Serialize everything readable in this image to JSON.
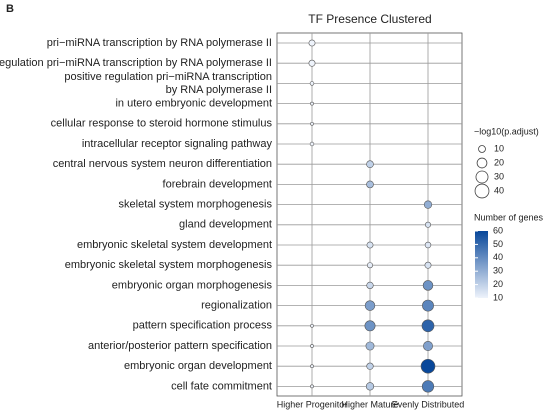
{
  "chart_data": {
    "type": "dot",
    "panel_label": "B",
    "title": "TF Presence Clustered",
    "categories": [
      "pri−miRNA transcription by RNA polymerase II",
      "regulation pri−miRNA transcription by RNA polymerase II",
      "positive regulation pri−miRNA transcription\nby RNA polymerase II",
      "in utero embryonic development",
      "cellular response to steroid hormone stimulus",
      "intracellular receptor signaling pathway",
      "central nervous system neuron differentiation",
      "forebrain development",
      "skeletal system morphogenesis",
      "gland development",
      "embryonic skeletal system development",
      "embryonic skeletal system morphogenesis",
      "embryonic organ morphogenesis",
      "regionalization",
      "pattern specification process",
      "anterior/posterior pattern specification",
      "embryonic organ development",
      "cell fate commitment"
    ],
    "x_categories": [
      "Higher Progenitor",
      "Higher Mature",
      "Evenly Distributed"
    ],
    "points": {
      "x": [
        "Higher Progenitor",
        "Higher Progenitor",
        "Higher Progenitor",
        "Higher Progenitor",
        "Higher Progenitor",
        "Higher Progenitor",
        "Higher Progenitor",
        "Higher Progenitor",
        "Higher Progenitor",
        "Higher Progenitor",
        "Higher Mature",
        "Higher Mature",
        "Higher Mature",
        "Higher Mature",
        "Higher Mature",
        "Higher Mature",
        "Higher Mature",
        "Higher Mature",
        "Higher Mature",
        "Higher Mature",
        "Evenly Distributed",
        "Evenly Distributed",
        "Evenly Distributed",
        "Evenly Distributed",
        "Evenly Distributed",
        "Evenly Distributed",
        "Evenly Distributed",
        "Evenly Distributed",
        "Evenly Distributed",
        "Evenly Distributed"
      ],
      "y": [
        "pri−miRNA transcription by RNA polymerase II",
        "regulation pri−miRNA transcription by RNA polymerase II",
        "positive regulation pri−miRNA transcription\nby RNA polymerase II",
        "in utero embryonic development",
        "cellular response to steroid hormone stimulus",
        "intracellular receptor signaling pathway",
        "pattern specification process",
        "anterior/posterior pattern specification",
        "embryonic organ development",
        "cell fate commitment",
        "central nervous system neuron differentiation",
        "forebrain development",
        "embryonic skeletal system development",
        "embryonic skeletal system morphogenesis",
        "embryonic organ morphogenesis",
        "regionalization",
        "pattern specification process",
        "anterior/posterior pattern specification",
        "embryonic organ development",
        "cell fate commitment",
        "skeletal system morphogenesis",
        "gland development",
        "embryonic skeletal system development",
        "embryonic skeletal system morphogenesis",
        "embryonic organ morphogenesis",
        "regionalization",
        "pattern specification process",
        "anterior/posterior pattern specification",
        "embryonic organ development",
        "cell fate commitment"
      ],
      "size": [
        8,
        8,
        3,
        2,
        2,
        3,
        2,
        2,
        2,
        2,
        10,
        10,
        8,
        6,
        9,
        20,
        22,
        14,
        9,
        12,
        12,
        6,
        7,
        8,
        20,
        26,
        30,
        18,
        40,
        28
      ],
      "genes": [
        10,
        10,
        10,
        10,
        10,
        10,
        10,
        10,
        10,
        10,
        20,
        25,
        15,
        12,
        18,
        35,
        38,
        27,
        20,
        22,
        30,
        15,
        14,
        15,
        38,
        42,
        52,
        34,
        60,
        45
      ]
    },
    "size_legend": {
      "title": "−log10(p.adjust)",
      "values": [
        10,
        20,
        30,
        40
      ]
    },
    "color_legend": {
      "title": "Number of genes",
      "lim": [
        10,
        60
      ],
      "ticks": [
        10,
        20,
        30,
        40,
        50,
        60
      ],
      "low_color": "#eef3fb",
      "high_color": "#08479a"
    },
    "grid": true
  }
}
